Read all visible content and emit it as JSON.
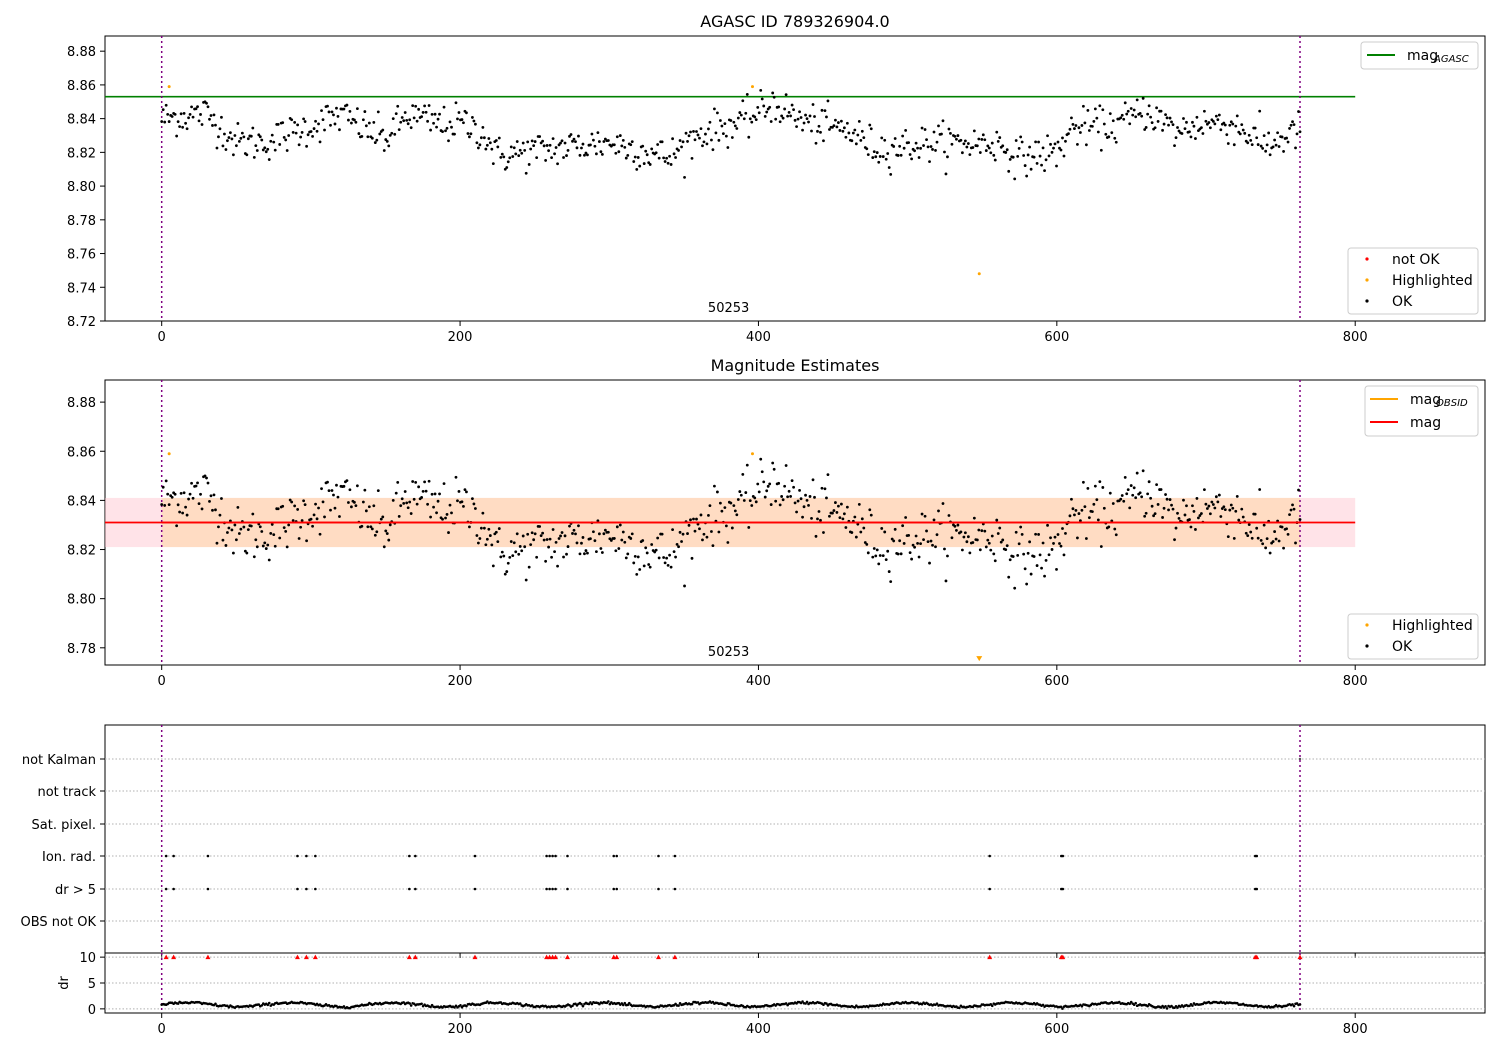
{
  "figure": {
    "title_top": "AGASC ID 789326904.0",
    "title_mid": "Magnitude Estimates",
    "obsid_label": "50253"
  },
  "colors": {
    "ok": "#000000",
    "highlighted": "#ffa500",
    "not_ok": "#ff0000",
    "agasc_line": "#008000",
    "mag_line": "#ff0000",
    "obsid_line": "#ffa500",
    "band_outer": "#ffc0cb",
    "band_inner": "#ffdab9",
    "boundary": "#800080"
  },
  "legends": {
    "top_lines": [
      {
        "base": "mag",
        "sub": "AGASC",
        "color": "#008000"
      }
    ],
    "top_points": [
      {
        "label": "not OK",
        "color": "#ff0000"
      },
      {
        "label": "Highlighted",
        "color": "#ffa500"
      },
      {
        "label": "OK",
        "color": "#000000"
      }
    ],
    "mid_lines": [
      {
        "base": "mag",
        "sub": "OBSID",
        "color": "#ffa500"
      },
      {
        "base": "mag",
        "sub": "",
        "color": "#ff0000"
      }
    ],
    "mid_points": [
      {
        "label": "Highlighted",
        "color": "#ffa500"
      },
      {
        "label": "OK",
        "color": "#000000"
      }
    ]
  },
  "chart_data": [
    {
      "type": "scatter",
      "name": "agasc-mag-panel",
      "title": "AGASC ID 789326904.0",
      "xlim": [
        -38,
        887
      ],
      "ylim": [
        8.72,
        8.889
      ],
      "xticks": [
        0,
        200,
        400,
        600,
        800
      ],
      "yticks": [
        8.72,
        8.74,
        8.76,
        8.78,
        8.8,
        8.82,
        8.84,
        8.86,
        8.88
      ],
      "hlines": [
        {
          "y": 8.853,
          "x": [
            -38,
            800
          ],
          "color": "#008000",
          "label": "mag_AGASC"
        }
      ],
      "vlines": [
        0,
        763
      ],
      "highlighted": [
        {
          "x": 5,
          "y": 8.859
        },
        {
          "x": 396,
          "y": 8.859
        },
        {
          "x": 548,
          "y": 8.748
        }
      ],
      "ok_series": {
        "n": 763,
        "x_range": [
          0,
          763
        ],
        "mean": 8.831,
        "sd": 0.009,
        "trend_knots": [
          [
            0,
            8.84
          ],
          [
            30,
            8.843
          ],
          [
            50,
            8.826
          ],
          [
            70,
            8.826
          ],
          [
            120,
            8.842
          ],
          [
            150,
            8.828
          ],
          [
            165,
            8.842
          ],
          [
            190,
            8.836
          ],
          [
            200,
            8.838
          ],
          [
            215,
            8.832
          ],
          [
            225,
            8.818
          ],
          [
            260,
            8.822
          ],
          [
            300,
            8.826
          ],
          [
            340,
            8.817
          ],
          [
            360,
            8.831
          ],
          [
            390,
            8.838
          ],
          [
            410,
            8.849
          ],
          [
            430,
            8.838
          ],
          [
            460,
            8.833
          ],
          [
            480,
            8.822
          ],
          [
            520,
            8.826
          ],
          [
            560,
            8.825
          ],
          [
            575,
            8.817
          ],
          [
            600,
            8.82
          ],
          [
            610,
            8.834
          ],
          [
            640,
            8.836
          ],
          [
            660,
            8.845
          ],
          [
            680,
            8.832
          ],
          [
            700,
            8.838
          ],
          [
            720,
            8.836
          ],
          [
            740,
            8.824
          ],
          [
            763,
            8.833
          ]
        ]
      }
    },
    {
      "type": "scatter",
      "name": "magnitude-estimates-panel",
      "title": "Magnitude Estimates",
      "xlim": [
        -38,
        887
      ],
      "ylim": [
        8.773,
        8.889
      ],
      "xticks": [
        0,
        200,
        400,
        600,
        800
      ],
      "yticks": [
        8.78,
        8.8,
        8.82,
        8.84,
        8.86,
        8.88
      ],
      "mag": 8.831,
      "band_outer": [
        8.821,
        8.841
      ],
      "band_inner": [
        8.821,
        8.841
      ],
      "band_x": [
        -38,
        800
      ],
      "vlines": [
        0,
        763
      ],
      "highlighted": [
        {
          "x": 5,
          "y": 8.859
        },
        {
          "x": 396,
          "y": 8.859
        },
        {
          "x": 548,
          "y": 8.775
        }
      ]
    },
    {
      "type": "scatter",
      "name": "flags-panel",
      "xlim": [
        -38,
        887
      ],
      "rows": [
        "not Kalman",
        "not track",
        "Sat. pixel.",
        "Ion. rad.",
        "dr > 5",
        "OBS not OK"
      ],
      "flag_x": [
        3,
        8,
        31,
        91,
        97,
        103,
        166,
        170,
        210,
        258,
        260,
        262,
        264,
        272,
        303,
        305,
        333,
        344,
        555,
        603,
        604,
        733,
        734
      ],
      "flagged_rows": [
        "Ion. rad.",
        "dr > 5"
      ],
      "vlines": [
        0,
        763
      ]
    },
    {
      "type": "scatter",
      "name": "dr-panel",
      "xlim": [
        -38,
        887
      ],
      "ylim": [
        -0.8,
        10.8
      ],
      "yticks": [
        0,
        5,
        10
      ],
      "ylabel": "dr",
      "xticks": [
        0,
        200,
        400,
        600,
        800
      ],
      "clipped_at": 10,
      "clipped_x": [
        3,
        8,
        31,
        91,
        97,
        103,
        166,
        170,
        210,
        258,
        260,
        262,
        264,
        272,
        303,
        305,
        333,
        344,
        555,
        603,
        604,
        733,
        734,
        763
      ],
      "dr_series": {
        "n": 763,
        "mean": 0.8,
        "amplitude": 0.5
      },
      "vlines": [
        0,
        763
      ]
    }
  ]
}
